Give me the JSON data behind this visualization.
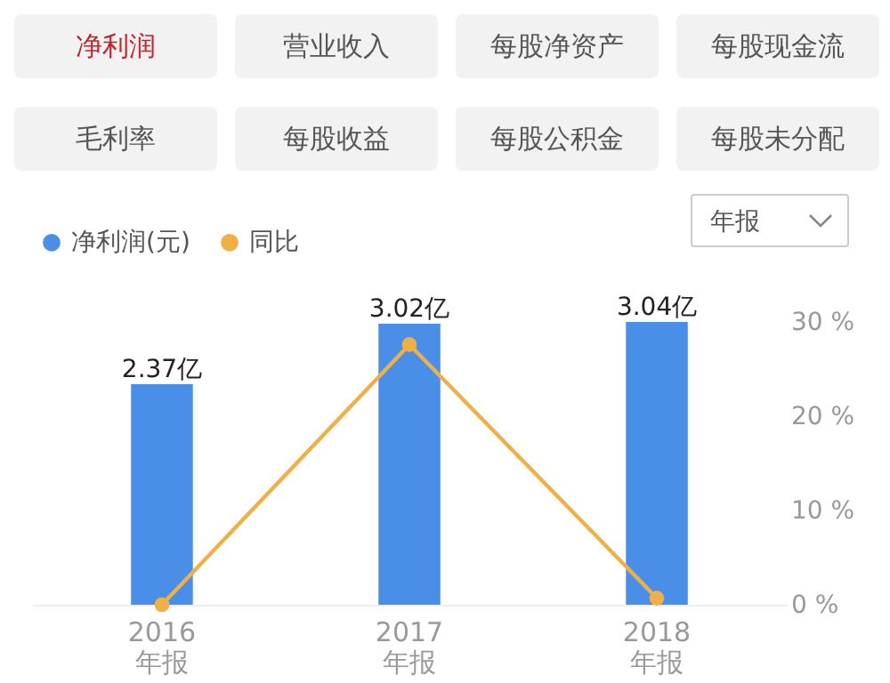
{
  "chart_data": {
    "type": "bar",
    "categories": [
      "2016\n年报",
      "2017\n年报",
      "2018\n年报"
    ],
    "series": [
      {
        "name": "净利润(元)",
        "color": "#4a8fe7",
        "values": [
          2.37,
          3.02,
          3.04
        ],
        "value_labels": [
          "2.37亿",
          "3.02亿",
          "3.04亿"
        ]
      },
      {
        "name": "同比",
        "type": "line",
        "axis": "y2",
        "color": "#f0b048",
        "values": [
          0,
          27.6,
          0.7
        ]
      }
    ],
    "y2lim": [
      0,
      30
    ],
    "y2ticks": [
      {
        "value": 0,
        "label": "0 %"
      },
      {
        "value": 10,
        "label": "10 %"
      },
      {
        "value": 20,
        "label": "20 %"
      },
      {
        "value": 30,
        "label": "30 %"
      }
    ],
    "grid": false,
    "legend": "top left",
    "marker": "circle",
    "line_style": "solid",
    "annotations": [
      "净利润",
      "营业收入",
      "每股净资产",
      "每股现金流",
      "毛利率",
      "每股收益",
      "每股公积金",
      "每股未分配",
      "年报"
    ]
  }
}
